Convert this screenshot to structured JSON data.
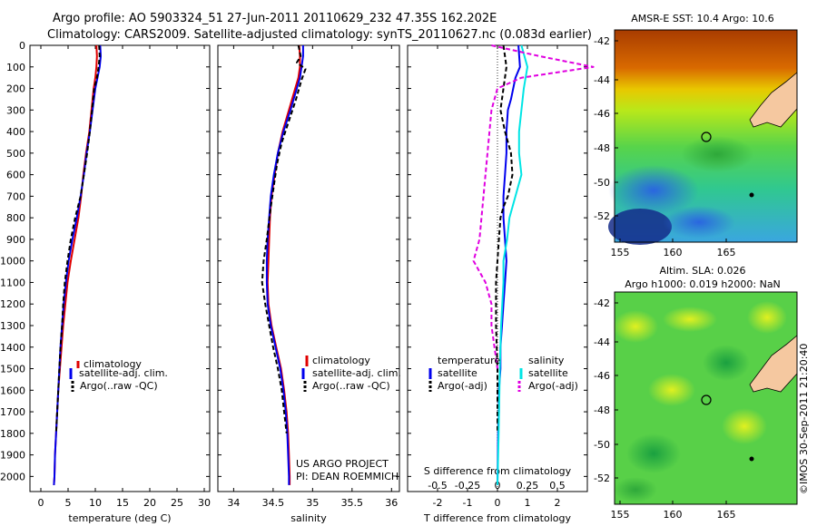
{
  "header": {
    "line1": "Argo profile: AO 5903324_51 27-Jun-2011 20110629_232 47.35S 162.202E",
    "line2": "Climatology: CARS2009. Satellite-adjusted climatology: synTS_20110627.nc (0.083d earlier)"
  },
  "credits": {
    "project": "US ARGO PROJECT",
    "pi": "PI: DEAN ROEMMICH",
    "side_stamp": "©IMOS 30-Sep-2011 21:20:40"
  },
  "legend": {
    "climatology": "climatology",
    "satellite_clim": "satellite-adj. clim.",
    "argo": "Argo(..raw -QC)",
    "diff_temperature": "temperature",
    "diff_salinity": "salinity",
    "diff_satellite": "satellite",
    "diff_argo": "Argo(-adj)"
  },
  "colors": {
    "climatology": "#e00000",
    "satellite": "#0000ee",
    "argo": "#000000",
    "salinity_satellite": "#00e5e5",
    "salinity_argo": "#e000e0"
  },
  "chart_data": [
    {
      "id": "temperature",
      "type": "line",
      "xlabel": "temperature (deg C)",
      "ylabel": "",
      "xlim": [
        -2,
        31
      ],
      "ylim": [
        2070,
        0
      ],
      "xticks": [
        0,
        5,
        10,
        15,
        20,
        25,
        30
      ],
      "xtick_labels": [
        "0",
        "5",
        "10",
        "15",
        "20",
        "25",
        "30"
      ],
      "yticks": [
        0,
        100,
        200,
        300,
        400,
        500,
        600,
        700,
        800,
        900,
        1000,
        1100,
        1200,
        1300,
        1400,
        1500,
        1600,
        1700,
        1800,
        1900,
        2000
      ],
      "ytick_labels": [
        "0",
        "100",
        "200",
        "300",
        "400",
        "500",
        "600",
        "700",
        "800",
        "900",
        "1000",
        "1100",
        "1200",
        "1300",
        "1400",
        "1500",
        "1600",
        "1700",
        "1800",
        "1900",
        "2000"
      ],
      "series": [
        {
          "name": "climatology",
          "style": "solid",
          "color": "#e00000",
          "x": [
            10.2,
            10.3,
            10.2,
            10.0,
            9.7,
            9.3,
            8.9,
            8.3,
            7.8,
            7.4,
            6.9,
            6.2,
            5.5,
            4.9,
            4.5,
            4.1,
            3.8,
            3.5,
            3.2,
            3.0,
            2.8,
            2.6,
            2.5,
            2.4
          ],
          "y": [
            0,
            50,
            100,
            150,
            200,
            300,
            400,
            500,
            600,
            700,
            800,
            900,
            1000,
            1100,
            1200,
            1300,
            1400,
            1500,
            1600,
            1700,
            1800,
            1900,
            2000,
            2040
          ]
        },
        {
          "name": "satellite-adj. clim.",
          "style": "solid",
          "color": "#0000ee",
          "x": [
            10.9,
            11.0,
            10.8,
            10.4,
            10.0,
            9.5,
            9.0,
            8.4,
            7.9,
            7.3,
            6.6,
            5.8,
            5.1,
            4.6,
            4.2,
            3.9,
            3.6,
            3.4,
            3.2,
            3.0,
            2.8,
            2.6,
            2.5,
            2.4
          ],
          "y": [
            0,
            50,
            100,
            150,
            200,
            300,
            400,
            500,
            600,
            700,
            800,
            900,
            1000,
            1100,
            1200,
            1300,
            1400,
            1500,
            1600,
            1700,
            1800,
            1900,
            2000,
            2040
          ]
        },
        {
          "name": "Argo(..raw -QC)",
          "style": "dashed",
          "color": "#000000",
          "x": [
            10.7,
            10.8,
            10.6,
            10.3,
            9.8,
            9.4,
            9.0,
            8.5,
            7.9,
            7.3,
            6.3,
            5.5,
            4.9,
            4.4,
            4.1,
            3.9,
            3.6,
            3.4,
            3.2,
            3.0,
            2.8
          ],
          "y": [
            0,
            50,
            100,
            150,
            200,
            300,
            400,
            500,
            600,
            700,
            800,
            900,
            1000,
            1100,
            1200,
            1300,
            1400,
            1500,
            1600,
            1700,
            1800
          ]
        }
      ]
    },
    {
      "id": "salinity",
      "type": "line",
      "xlabel": "salinity",
      "ylabel": "",
      "xlim": [
        33.8,
        36.1
      ],
      "ylim": [
        2070,
        0
      ],
      "xticks": [
        34,
        34.5,
        35,
        35.5,
        36
      ],
      "xtick_labels": [
        "34",
        "34.5",
        "35",
        "35.5",
        "36"
      ],
      "series": [
        {
          "name": "climatology",
          "style": "solid",
          "color": "#e00000",
          "x": [
            34.83,
            34.84,
            34.84,
            34.82,
            34.78,
            34.7,
            34.62,
            34.56,
            34.52,
            34.48,
            34.46,
            34.45,
            34.44,
            34.43,
            34.44,
            34.48,
            34.54,
            34.6,
            34.64,
            34.67,
            34.69,
            34.7,
            34.71,
            34.71
          ],
          "y": [
            0,
            50,
            100,
            150,
            200,
            300,
            400,
            500,
            600,
            700,
            800,
            900,
            1000,
            1100,
            1200,
            1300,
            1400,
            1500,
            1600,
            1700,
            1800,
            1900,
            2000,
            2040
          ]
        },
        {
          "name": "satellite-adj. clim.",
          "style": "solid",
          "color": "#0000ee",
          "x": [
            34.88,
            34.88,
            34.86,
            34.84,
            34.8,
            34.72,
            34.63,
            34.56,
            34.51,
            34.47,
            34.45,
            34.43,
            34.42,
            34.42,
            34.43,
            34.47,
            34.53,
            34.59,
            34.63,
            34.66,
            34.68,
            34.69,
            34.7,
            34.7
          ],
          "y": [
            0,
            50,
            100,
            150,
            200,
            300,
            400,
            500,
            600,
            700,
            800,
            900,
            1000,
            1100,
            1200,
            1300,
            1400,
            1500,
            1600,
            1700,
            1800,
            1900,
            2000,
            2040
          ]
        },
        {
          "name": "Argo(..raw -QC)",
          "style": "dashed",
          "color": "#000000",
          "x": [
            34.82,
            34.85,
            34.8,
            34.91,
            34.86,
            34.79,
            34.7,
            34.61,
            34.55,
            34.51,
            34.47,
            34.42,
            34.38,
            34.36,
            34.4,
            34.45,
            34.5,
            34.56,
            34.61,
            34.64,
            34.67
          ],
          "y": [
            0,
            50,
            80,
            110,
            160,
            250,
            350,
            450,
            550,
            650,
            750,
            900,
            1000,
            1100,
            1200,
            1300,
            1400,
            1500,
            1600,
            1700,
            1800
          ]
        }
      ]
    },
    {
      "id": "difference",
      "type": "line",
      "xlabel": "T difference from climatology",
      "top_label": "S difference from climatology",
      "xlim": [
        -3,
        3
      ],
      "ylim": [
        2070,
        0
      ],
      "xticks": [
        -2,
        -1,
        0,
        1,
        2
      ],
      "xtick_labels": [
        "-2",
        "-1",
        "0",
        "1",
        "2"
      ],
      "top_ticks": [
        -0.5,
        -0.25,
        0,
        0.25,
        0.5
      ],
      "top_tick_labels": [
        "-0.5",
        "-0.25",
        "0",
        "0.25",
        "0.5"
      ],
      "series": [
        {
          "name": "temperature satellite",
          "style": "solid",
          "color": "#0000ee",
          "x": [
            0.7,
            0.75,
            0.6,
            0.45,
            0.35,
            0.3,
            0.3,
            0.25,
            0.2,
            0.2,
            0.25,
            0.3,
            0.25,
            0.2,
            0.15,
            0.1,
            0.1,
            0.05,
            0.05,
            0.02,
            0.0
          ],
          "y": [
            0,
            100,
            150,
            250,
            300,
            400,
            500,
            600,
            700,
            800,
            900,
            1000,
            1100,
            1200,
            1300,
            1400,
            1500,
            1600,
            1700,
            1800,
            2040
          ]
        },
        {
          "name": "temperature Argo(-adj)",
          "style": "dashed",
          "color": "#000000",
          "x": [
            0.2,
            0.3,
            0.2,
            0.1,
            0.25,
            0.45,
            0.5,
            0.35,
            0.2,
            0.1,
            0.05,
            0.0,
            -0.05,
            -0.05,
            0.0,
            0.0
          ],
          "y": [
            0,
            100,
            200,
            300,
            400,
            500,
            600,
            700,
            750,
            800,
            900,
            1000,
            1100,
            1300,
            1500,
            1800
          ]
        },
        {
          "name": "salinity satellite",
          "style": "solid",
          "color": "#00e5e5",
          "x": [
            0.2,
            0.25,
            0.22,
            0.2,
            0.18,
            0.18,
            0.2,
            0.15,
            0.1,
            0.08,
            0.05,
            0.05,
            0.04,
            0.03,
            0.02,
            0.01,
            0.0
          ],
          "y": [
            0,
            100,
            200,
            300,
            400,
            500,
            600,
            700,
            800,
            900,
            1000,
            1100,
            1200,
            1300,
            1500,
            1800,
            2040
          ]
        },
        {
          "name": "salinity Argo(-adj)",
          "style": "dashed",
          "color": "#e000e0",
          "x": [
            -0.05,
            0.35,
            0.8,
            0.2,
            0.0,
            -0.05,
            -0.15,
            -0.2,
            -0.1,
            -0.05,
            -0.05,
            0.0
          ],
          "y": [
            0,
            50,
            100,
            150,
            200,
            300,
            900,
            1000,
            1100,
            1200,
            1300,
            1500
          ]
        }
      ]
    }
  ],
  "maps": {
    "sst": {
      "title": "AMSR-E SST: 10.4 Argo: 10.6",
      "xticks": [
        "155",
        "160",
        "165"
      ],
      "yticks": [
        "-42",
        "-44",
        "-46",
        "-48",
        "-50",
        "-52"
      ]
    },
    "sla": {
      "title_line1": "Altim. SLA: 0.026",
      "title_line2": "Argo h1000: 0.019 h2000: NaN",
      "xticks": [
        "155",
        "160",
        "165"
      ],
      "yticks": [
        "-42",
        "-44",
        "-46",
        "-48",
        "-50",
        "-52"
      ]
    }
  }
}
